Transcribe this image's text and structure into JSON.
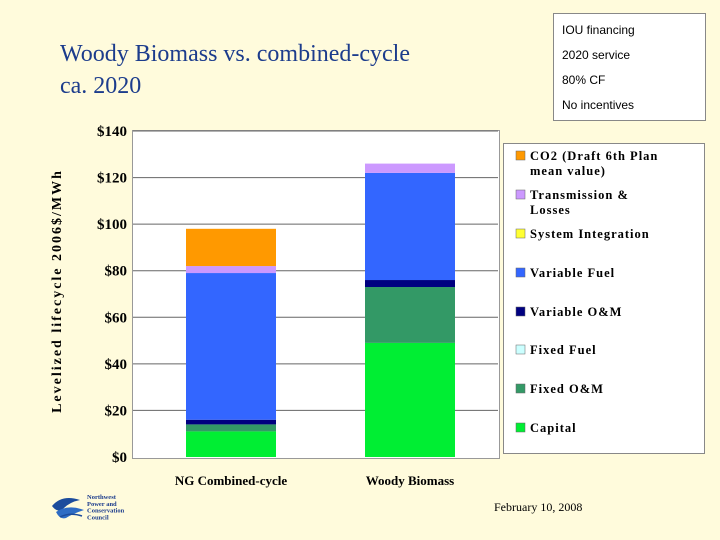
{
  "slide": {
    "title": "Woody Biomass vs. combined-cycle\nca. 2020",
    "footer_date": "February 10, 2008"
  },
  "notes": {
    "items": [
      "IOU financing",
      "2020 service",
      "80% CF",
      "No incentives"
    ]
  },
  "logo": {
    "lines": [
      "Northwest",
      "Power and",
      "Conservation",
      "Council"
    ]
  },
  "chart_data": {
    "type": "bar",
    "stacked": true,
    "ylabel": "Levelized lifecycle 2006$/MWh",
    "ylim": [
      0,
      140
    ],
    "yticks": [
      0,
      20,
      40,
      60,
      80,
      100,
      120,
      140
    ],
    "yticklabels": [
      "$0",
      "$20",
      "$40",
      "$60",
      "$80",
      "$100",
      "$120",
      "$140"
    ],
    "grid": true,
    "legend_position": "right",
    "categories": [
      "NG Combined-cycle",
      "Woody Biomass"
    ],
    "series": [
      {
        "name": "Capital",
        "values": [
          11,
          49
        ],
        "color": "#00ee33"
      },
      {
        "name": "Fixed O&M",
        "values": [
          3,
          24
        ],
        "color": "#339966"
      },
      {
        "name": "Fixed Fuel",
        "values": [
          0,
          0
        ],
        "color": "#ccffff"
      },
      {
        "name": "Variable O&M",
        "values": [
          2,
          3
        ],
        "color": "#000080"
      },
      {
        "name": "Variable Fuel",
        "values": [
          63,
          46
        ],
        "color": "#3366ff"
      },
      {
        "name": "System Integration",
        "values": [
          0,
          0
        ],
        "color": "#ffff33"
      },
      {
        "name": "Transmission & Losses",
        "values": [
          3,
          4
        ],
        "color": "#cc99ff"
      },
      {
        "name": "CO2 (Draft 6th Plan mean value)",
        "values": [
          16,
          0
        ],
        "color": "#ff9900"
      }
    ],
    "legend_lines": [
      [
        "CO2 (Draft 6th Plan",
        "mean value)"
      ],
      [
        "Transmission &",
        "Losses"
      ],
      [
        "System Integration"
      ],
      [
        "Variable Fuel"
      ],
      [
        "Variable O&M"
      ],
      [
        "Fixed Fuel"
      ],
      [
        "Fixed O&M"
      ],
      [
        "Capital"
      ]
    ]
  }
}
